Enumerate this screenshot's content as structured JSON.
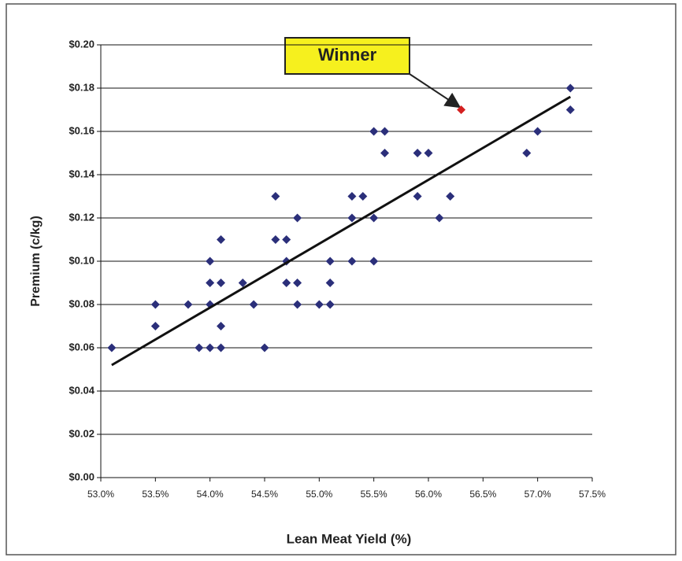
{
  "chart_data": {
    "type": "scatter",
    "xlabel": "Lean Meat Yield (%)",
    "ylabel": "Premium (c/kg)",
    "annotation": "Winner",
    "xlim": [
      53,
      57.5
    ],
    "xticks": [
      {
        "value": 53,
        "label": "53.0%"
      },
      {
        "value": 53.5,
        "label": "53.5%"
      },
      {
        "value": 54,
        "label": "54.0%"
      },
      {
        "value": 54.5,
        "label": "54.5%"
      },
      {
        "value": 55,
        "label": "55.0%"
      },
      {
        "value": 55.5,
        "label": "55.5%"
      },
      {
        "value": 56,
        "label": "56.0%"
      },
      {
        "value": 56.5,
        "label": "56.5%"
      },
      {
        "value": 57,
        "label": "57.0%"
      },
      {
        "value": 57.5,
        "label": "57.5%"
      }
    ],
    "ylim": [
      0,
      0.2
    ],
    "yticks": [
      {
        "value": 0,
        "label": "$0.00"
      },
      {
        "value": 0.02,
        "label": "$0.02"
      },
      {
        "value": 0.04,
        "label": "$0.04"
      },
      {
        "value": 0.06,
        "label": "$0.06"
      },
      {
        "value": 0.08,
        "label": "$0.08"
      },
      {
        "value": 0.1,
        "label": "$0.10"
      },
      {
        "value": 0.12,
        "label": "$0.12"
      },
      {
        "value": 0.14,
        "label": "$0.14"
      },
      {
        "value": 0.16,
        "label": "$0.16"
      },
      {
        "value": 0.18,
        "label": "$0.18"
      },
      {
        "value": 0.2,
        "label": "$0.20"
      }
    ],
    "grid": true,
    "series": [
      {
        "color": "#2b2f7a",
        "x": [
          53.1,
          53.5,
          53.5,
          53.8,
          53.9,
          54.0,
          54.0,
          54.0,
          54.0,
          54.1,
          54.1,
          54.1,
          54.1,
          54.3,
          54.4,
          54.5,
          54.6,
          54.6,
          54.7,
          54.7,
          54.7,
          54.8,
          54.8,
          54.8,
          55.0,
          55.1,
          55.1,
          55.1,
          55.3,
          55.3,
          55.3,
          55.4,
          55.5,
          55.5,
          55.5,
          55.6,
          55.6,
          55.9,
          55.9,
          56.0,
          56.1,
          56.2,
          56.9,
          57.0,
          57.3,
          57.3
        ],
        "values": [
          0.06,
          0.08,
          0.07,
          0.08,
          0.06,
          0.06,
          0.08,
          0.09,
          0.1,
          0.06,
          0.07,
          0.09,
          0.11,
          0.09,
          0.08,
          0.06,
          0.13,
          0.11,
          0.11,
          0.1,
          0.09,
          0.09,
          0.08,
          0.12,
          0.08,
          0.08,
          0.09,
          0.1,
          0.1,
          0.12,
          0.13,
          0.13,
          0.12,
          0.1,
          0.16,
          0.16,
          0.15,
          0.15,
          0.13,
          0.15,
          0.12,
          0.13,
          0.15,
          0.16,
          0.17,
          0.18
        ]
      },
      {
        "color": "#d42020",
        "x": [
          56.3
        ],
        "values": [
          0.17
        ]
      }
    ],
    "trendline": {
      "color": "#111111",
      "x": [
        53.1,
        57.3
      ],
      "values": [
        0.052,
        0.176
      ]
    }
  }
}
